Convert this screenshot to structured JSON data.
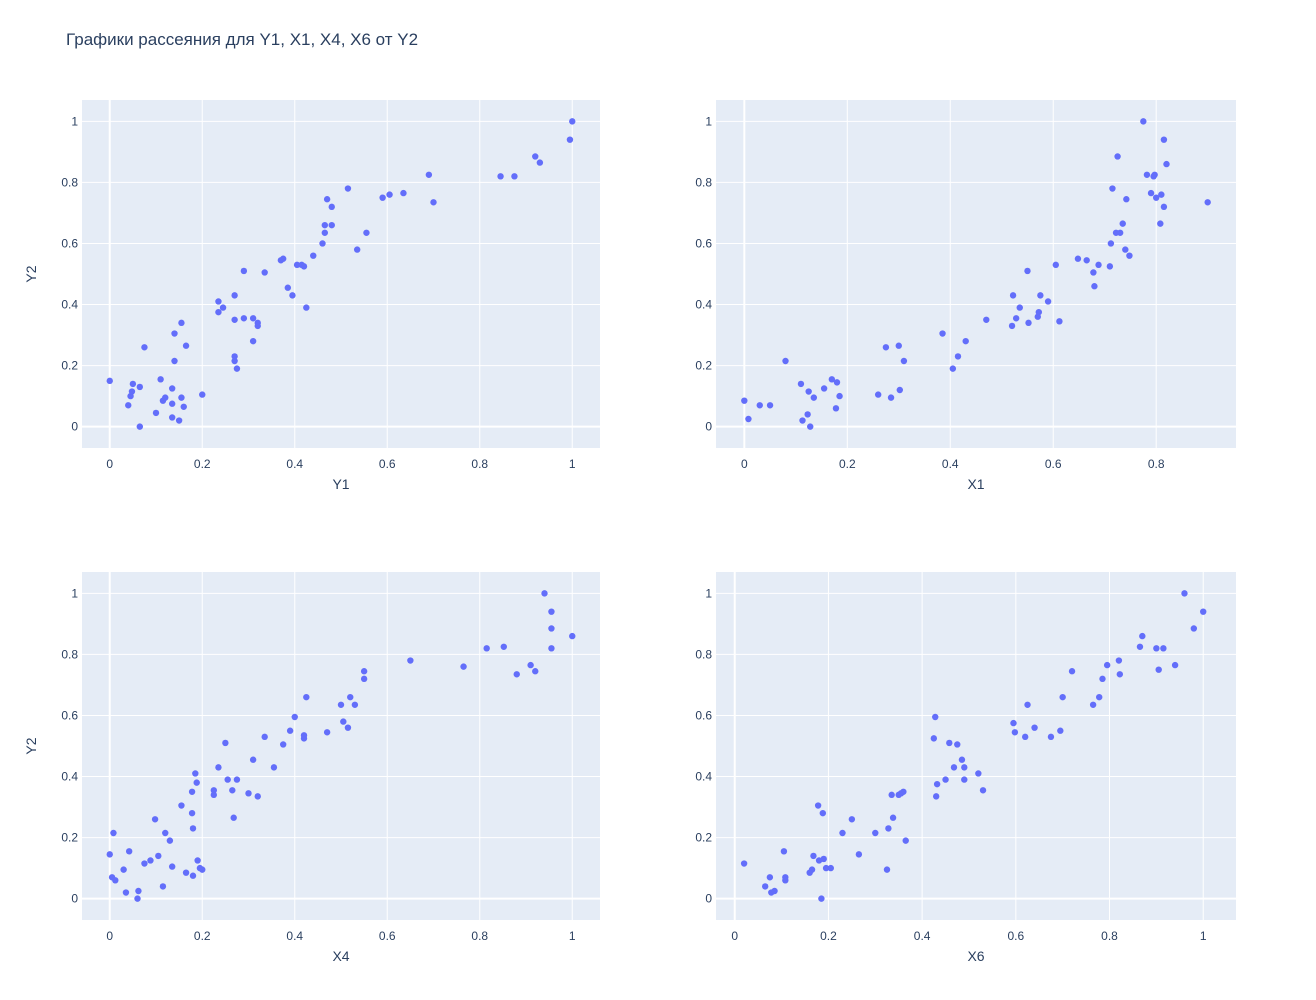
{
  "title": "Графики рассеяния для Y1, X1, X4, X6 от Y2",
  "colors": {
    "plot_bg": "#E5ECF6",
    "grid": "#ffffff",
    "marker": "#636EFA",
    "text": "#2a3f5f"
  },
  "chart_data": [
    {
      "type": "scatter",
      "xlabel": "Y1",
      "ylabel": "Y2",
      "xlim": [
        -0.06,
        1.06
      ],
      "ylim": [
        -0.07,
        1.07
      ],
      "xticks": [
        "0",
        "0.2",
        "0.4",
        "0.6",
        "0.8",
        "1"
      ],
      "yticks": [
        "0",
        "0.2",
        "0.4",
        "0.6",
        "0.8",
        "1"
      ],
      "grid": true,
      "points": [
        [
          0.0,
          0.15
        ],
        [
          0.04,
          0.07
        ],
        [
          0.045,
          0.1
        ],
        [
          0.048,
          0.115
        ],
        [
          0.05,
          0.14
        ],
        [
          0.065,
          0.13
        ],
        [
          0.065,
          0.0
        ],
        [
          0.075,
          0.26
        ],
        [
          0.1,
          0.045
        ],
        [
          0.11,
          0.155
        ],
        [
          0.115,
          0.085
        ],
        [
          0.12,
          0.095
        ],
        [
          0.135,
          0.075
        ],
        [
          0.135,
          0.125
        ],
        [
          0.135,
          0.03
        ],
        [
          0.14,
          0.305
        ],
        [
          0.14,
          0.215
        ],
        [
          0.15,
          0.02
        ],
        [
          0.155,
          0.095
        ],
        [
          0.155,
          0.34
        ],
        [
          0.16,
          0.065
        ],
        [
          0.165,
          0.265
        ],
        [
          0.2,
          0.105
        ],
        [
          0.235,
          0.41
        ],
        [
          0.235,
          0.375
        ],
        [
          0.245,
          0.39
        ],
        [
          0.27,
          0.43
        ],
        [
          0.27,
          0.35
        ],
        [
          0.27,
          0.215
        ],
        [
          0.27,
          0.23
        ],
        [
          0.275,
          0.19
        ],
        [
          0.29,
          0.51
        ],
        [
          0.29,
          0.355
        ],
        [
          0.31,
          0.355
        ],
        [
          0.31,
          0.28
        ],
        [
          0.32,
          0.34
        ],
        [
          0.32,
          0.33
        ],
        [
          0.335,
          0.505
        ],
        [
          0.37,
          0.545
        ],
        [
          0.375,
          0.55
        ],
        [
          0.385,
          0.455
        ],
        [
          0.395,
          0.43
        ],
        [
          0.405,
          0.53
        ],
        [
          0.415,
          0.53
        ],
        [
          0.42,
          0.525
        ],
        [
          0.425,
          0.39
        ],
        [
          0.44,
          0.56
        ],
        [
          0.46,
          0.6
        ],
        [
          0.465,
          0.635
        ],
        [
          0.465,
          0.66
        ],
        [
          0.47,
          0.745
        ],
        [
          0.48,
          0.72
        ],
        [
          0.48,
          0.66
        ],
        [
          0.515,
          0.78
        ],
        [
          0.535,
          0.58
        ],
        [
          0.555,
          0.635
        ],
        [
          0.59,
          0.75
        ],
        [
          0.605,
          0.76
        ],
        [
          0.635,
          0.765
        ],
        [
          0.69,
          0.825
        ],
        [
          0.7,
          0.735
        ],
        [
          0.845,
          0.82
        ],
        [
          0.875,
          0.82
        ],
        [
          0.92,
          0.885
        ],
        [
          0.93,
          0.865
        ],
        [
          0.995,
          0.94
        ],
        [
          1.0,
          1.0
        ]
      ]
    },
    {
      "type": "scatter",
      "xlabel": "X1",
      "ylabel": "",
      "xlim": [
        -0.055,
        0.955
      ],
      "ylim": [
        -0.07,
        1.07
      ],
      "xticks": [
        "0",
        "0.2",
        "0.4",
        "0.6",
        "0.8"
      ],
      "yticks": [
        "0",
        "0.2",
        "0.4",
        "0.6",
        "0.8",
        "1"
      ],
      "grid": true,
      "points": [
        [
          0.0,
          0.085
        ],
        [
          0.008,
          0.025
        ],
        [
          0.03,
          0.07
        ],
        [
          0.05,
          0.07
        ],
        [
          0.08,
          0.215
        ],
        [
          0.11,
          0.14
        ],
        [
          0.113,
          0.02
        ],
        [
          0.123,
          0.04
        ],
        [
          0.125,
          0.115
        ],
        [
          0.128,
          0.0
        ],
        [
          0.135,
          0.095
        ],
        [
          0.155,
          0.125
        ],
        [
          0.17,
          0.155
        ],
        [
          0.178,
          0.06
        ],
        [
          0.18,
          0.145
        ],
        [
          0.185,
          0.1
        ],
        [
          0.26,
          0.105
        ],
        [
          0.275,
          0.26
        ],
        [
          0.285,
          0.095
        ],
        [
          0.3,
          0.265
        ],
        [
          0.302,
          0.12
        ],
        [
          0.31,
          0.215
        ],
        [
          0.385,
          0.305
        ],
        [
          0.405,
          0.19
        ],
        [
          0.415,
          0.23
        ],
        [
          0.43,
          0.28
        ],
        [
          0.47,
          0.35
        ],
        [
          0.52,
          0.33
        ],
        [
          0.522,
          0.43
        ],
        [
          0.528,
          0.355
        ],
        [
          0.535,
          0.39
        ],
        [
          0.55,
          0.51
        ],
        [
          0.552,
          0.34
        ],
        [
          0.57,
          0.36
        ],
        [
          0.572,
          0.375
        ],
        [
          0.575,
          0.43
        ],
        [
          0.59,
          0.41
        ],
        [
          0.605,
          0.53
        ],
        [
          0.612,
          0.345
        ],
        [
          0.648,
          0.55
        ],
        [
          0.665,
          0.545
        ],
        [
          0.678,
          0.505
        ],
        [
          0.68,
          0.46
        ],
        [
          0.688,
          0.53
        ],
        [
          0.71,
          0.525
        ],
        [
          0.712,
          0.6
        ],
        [
          0.715,
          0.78
        ],
        [
          0.725,
          0.885
        ],
        [
          0.722,
          0.635
        ],
        [
          0.73,
          0.635
        ],
        [
          0.735,
          0.665
        ],
        [
          0.74,
          0.58
        ],
        [
          0.742,
          0.745
        ],
        [
          0.748,
          0.56
        ],
        [
          0.775,
          1.0
        ],
        [
          0.782,
          0.825
        ],
        [
          0.79,
          0.765
        ],
        [
          0.795,
          0.82
        ],
        [
          0.797,
          0.825
        ],
        [
          0.8,
          0.75
        ],
        [
          0.808,
          0.665
        ],
        [
          0.81,
          0.76
        ],
        [
          0.815,
          0.94
        ],
        [
          0.815,
          0.72
        ],
        [
          0.82,
          0.86
        ],
        [
          0.9,
          0.735
        ]
      ]
    },
    {
      "type": "scatter",
      "xlabel": "X4",
      "ylabel": "Y2",
      "xlim": [
        -0.06,
        1.06
      ],
      "ylim": [
        -0.07,
        1.07
      ],
      "xticks": [
        "0",
        "0.2",
        "0.4",
        "0.6",
        "0.8",
        "1"
      ],
      "yticks": [
        "0",
        "0.2",
        "0.4",
        "0.6",
        "0.8",
        "1"
      ],
      "grid": true,
      "points": [
        [
          0.0,
          0.145
        ],
        [
          0.005,
          0.07
        ],
        [
          0.008,
          0.215
        ],
        [
          0.012,
          0.06
        ],
        [
          0.03,
          0.095
        ],
        [
          0.035,
          0.02
        ],
        [
          0.042,
          0.155
        ],
        [
          0.06,
          0.0
        ],
        [
          0.062,
          0.025
        ],
        [
          0.075,
          0.115
        ],
        [
          0.088,
          0.125
        ],
        [
          0.098,
          0.26
        ],
        [
          0.105,
          0.14
        ],
        [
          0.115,
          0.04
        ],
        [
          0.12,
          0.215
        ],
        [
          0.13,
          0.19
        ],
        [
          0.135,
          0.105
        ],
        [
          0.155,
          0.305
        ],
        [
          0.165,
          0.085
        ],
        [
          0.178,
          0.35
        ],
        [
          0.178,
          0.28
        ],
        [
          0.18,
          0.075
        ],
        [
          0.18,
          0.23
        ],
        [
          0.185,
          0.41
        ],
        [
          0.188,
          0.38
        ],
        [
          0.19,
          0.125
        ],
        [
          0.195,
          0.1
        ],
        [
          0.2,
          0.095
        ],
        [
          0.225,
          0.355
        ],
        [
          0.225,
          0.34
        ],
        [
          0.235,
          0.43
        ],
        [
          0.25,
          0.51
        ],
        [
          0.255,
          0.39
        ],
        [
          0.265,
          0.355
        ],
        [
          0.268,
          0.265
        ],
        [
          0.275,
          0.39
        ],
        [
          0.3,
          0.345
        ],
        [
          0.31,
          0.455
        ],
        [
          0.32,
          0.335
        ],
        [
          0.335,
          0.53
        ],
        [
          0.355,
          0.43
        ],
        [
          0.375,
          0.505
        ],
        [
          0.39,
          0.55
        ],
        [
          0.4,
          0.595
        ],
        [
          0.42,
          0.525
        ],
        [
          0.42,
          0.535
        ],
        [
          0.425,
          0.66
        ],
        [
          0.47,
          0.545
        ],
        [
          0.5,
          0.635
        ],
        [
          0.505,
          0.58
        ],
        [
          0.515,
          0.56
        ],
        [
          0.52,
          0.66
        ],
        [
          0.53,
          0.635
        ],
        [
          0.55,
          0.745
        ],
        [
          0.55,
          0.72
        ],
        [
          0.65,
          0.78
        ],
        [
          0.765,
          0.76
        ],
        [
          0.815,
          0.82
        ],
        [
          0.852,
          0.825
        ],
        [
          0.88,
          0.735
        ],
        [
          0.91,
          0.765
        ],
        [
          0.92,
          0.745
        ],
        [
          0.94,
          1.0
        ],
        [
          0.955,
          0.94
        ],
        [
          0.955,
          0.885
        ],
        [
          0.955,
          0.82
        ],
        [
          1.0,
          0.86
        ]
      ]
    },
    {
      "type": "scatter",
      "xlabel": "X6",
      "ylabel": "",
      "xlim": [
        -0.04,
        1.07
      ],
      "ylim": [
        -0.07,
        1.07
      ],
      "xticks": [
        "0",
        "0.2",
        "0.4",
        "0.6",
        "0.8",
        "1"
      ],
      "yticks": [
        "0",
        "0.2",
        "0.4",
        "0.6",
        "0.8",
        "1"
      ],
      "grid": true,
      "points": [
        [
          0.02,
          0.115
        ],
        [
          0.065,
          0.04
        ],
        [
          0.075,
          0.07
        ],
        [
          0.078,
          0.02
        ],
        [
          0.085,
          0.025
        ],
        [
          0.105,
          0.155
        ],
        [
          0.108,
          0.06
        ],
        [
          0.108,
          0.07
        ],
        [
          0.16,
          0.085
        ],
        [
          0.165,
          0.095
        ],
        [
          0.168,
          0.14
        ],
        [
          0.178,
          0.305
        ],
        [
          0.18,
          0.125
        ],
        [
          0.185,
          0.0
        ],
        [
          0.188,
          0.28
        ],
        [
          0.19,
          0.13
        ],
        [
          0.195,
          0.1
        ],
        [
          0.205,
          0.1
        ],
        [
          0.23,
          0.215
        ],
        [
          0.25,
          0.26
        ],
        [
          0.265,
          0.145
        ],
        [
          0.3,
          0.215
        ],
        [
          0.325,
          0.095
        ],
        [
          0.328,
          0.23
        ],
        [
          0.335,
          0.34
        ],
        [
          0.338,
          0.265
        ],
        [
          0.35,
          0.34
        ],
        [
          0.355,
          0.345
        ],
        [
          0.36,
          0.35
        ],
        [
          0.365,
          0.19
        ],
        [
          0.425,
          0.525
        ],
        [
          0.428,
          0.595
        ],
        [
          0.43,
          0.335
        ],
        [
          0.432,
          0.375
        ],
        [
          0.45,
          0.39
        ],
        [
          0.458,
          0.51
        ],
        [
          0.468,
          0.43
        ],
        [
          0.475,
          0.505
        ],
        [
          0.485,
          0.455
        ],
        [
          0.49,
          0.39
        ],
        [
          0.49,
          0.43
        ],
        [
          0.52,
          0.41
        ],
        [
          0.53,
          0.355
        ],
        [
          0.595,
          0.575
        ],
        [
          0.598,
          0.545
        ],
        [
          0.62,
          0.53
        ],
        [
          0.625,
          0.635
        ],
        [
          0.64,
          0.56
        ],
        [
          0.675,
          0.53
        ],
        [
          0.695,
          0.55
        ],
        [
          0.7,
          0.66
        ],
        [
          0.72,
          0.745
        ],
        [
          0.765,
          0.635
        ],
        [
          0.778,
          0.66
        ],
        [
          0.785,
          0.72
        ],
        [
          0.795,
          0.765
        ],
        [
          0.82,
          0.78
        ],
        [
          0.822,
          0.735
        ],
        [
          0.865,
          0.825
        ],
        [
          0.87,
          0.86
        ],
        [
          0.9,
          0.82
        ],
        [
          0.905,
          0.75
        ],
        [
          0.915,
          0.82
        ],
        [
          0.94,
          0.765
        ],
        [
          0.96,
          1.0
        ],
        [
          0.98,
          0.885
        ],
        [
          1.0,
          0.94
        ]
      ]
    }
  ]
}
